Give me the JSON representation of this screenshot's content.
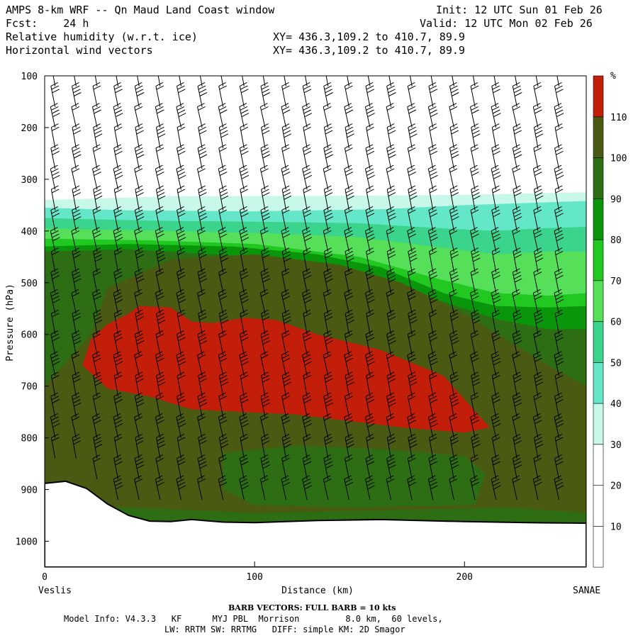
{
  "header": {
    "title": "AMPS 8-km WRF -- Qn Maud Land Coast window",
    "fcst": "Fcst:    24 h",
    "field1": "Relative humidity (w.r.t. ice)",
    "field2": "Horizontal wind vectors",
    "init": "Init: 12 UTC Sun 01 Feb 26",
    "valid": "Valid: 12 UTC Mon 02 Feb 26",
    "xy1": "XY= 436.3,109.2 to 410.7, 89.9",
    "xy2": "XY= 436.3,109.2 to 410.7, 89.9"
  },
  "chart_data": {
    "type": "heatmap",
    "xlabel": "Distance (km)",
    "ylabel": "Pressure (hPa)",
    "xlim": [
      0,
      258
    ],
    "ylim": [
      100,
      1050
    ],
    "y_scale": "linear-inverted",
    "x_ticks": [
      0,
      100,
      200
    ],
    "y_ticks": [
      100,
      200,
      300,
      400,
      500,
      600,
      700,
      800,
      900,
      1000
    ],
    "x_end_labels": {
      "left": "Veslis",
      "right": "SANAE"
    },
    "colorbar": {
      "unit": "%",
      "levels": [
        10,
        20,
        30,
        40,
        50,
        60,
        70,
        80,
        90,
        100,
        110
      ],
      "colors": [
        "#ffffff",
        "#ffffff",
        "#ffffff",
        "#c8f8ea",
        "#64e6c8",
        "#3ad48c",
        "#56e05a",
        "#20c820",
        "#0a960a",
        "#2d6e14",
        "#4b5a12",
        "#c21e0a"
      ]
    },
    "terrain_pressure": [
      [
        0,
        888
      ],
      [
        10,
        884
      ],
      [
        20,
        898
      ],
      [
        30,
        928
      ],
      [
        40,
        950
      ],
      [
        50,
        961
      ],
      [
        60,
        962
      ],
      [
        70,
        958
      ],
      [
        85,
        963
      ],
      [
        100,
        964
      ],
      [
        130,
        960
      ],
      [
        160,
        958
      ],
      [
        200,
        962
      ],
      [
        230,
        964
      ],
      [
        258,
        965
      ]
    ],
    "barb_columns_km": [
      5,
      15,
      25,
      35,
      45,
      55,
      65,
      75,
      85,
      95,
      105,
      115,
      125,
      135,
      145,
      155,
      165,
      175,
      185,
      195,
      205,
      215,
      225,
      235,
      245
    ],
    "barb_levels_hPa": [
      120,
      160,
      200,
      240,
      280,
      320,
      360,
      400,
      440,
      480,
      520,
      560,
      600,
      640,
      680,
      720,
      760,
      800,
      840,
      880,
      920
    ]
  },
  "footer": {
    "barb_note": "BARB VECTORS:  FULL BARB = 10 kts",
    "model_info": "Model Info: V4.3.3   KF      MYJ PBL  Morrison         8.0 km,  60 levels,",
    "physics": "LW: RRTM SW: RRTMG   DIFF: simple KM: 2D Smagor"
  }
}
